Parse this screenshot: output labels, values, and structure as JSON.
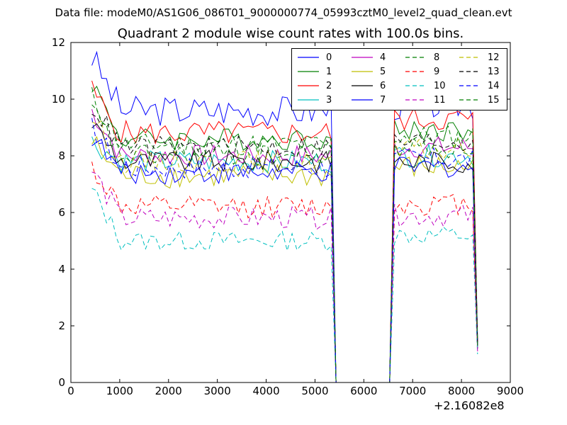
{
  "header": {
    "suptitle": "Data file: modeM0/AS1G06_086T01_9000000774_05993cztM0_level2_quad_clean.evt"
  },
  "chart_data": {
    "type": "line",
    "title": "Quadrant 2 module wise count rates with 100.0s bins.",
    "xlabel": "",
    "ylabel": "",
    "x_offset_label": "+2.16082e8",
    "xlim": [
      0,
      9000
    ],
    "ylim": [
      0,
      12
    ],
    "xticks": [
      "0",
      "1000",
      "2000",
      "3000",
      "4000",
      "5000",
      "6000",
      "7000",
      "8000",
      "9000"
    ],
    "yticks": [
      "0",
      "2",
      "4",
      "6",
      "8",
      "10",
      "12"
    ],
    "x": [
      430,
      530,
      630,
      730,
      830,
      930,
      1030,
      1130,
      1230,
      1330,
      1430,
      1530,
      1630,
      1730,
      1830,
      1930,
      2030,
      2130,
      2230,
      2330,
      2430,
      2530,
      2630,
      2730,
      2830,
      2930,
      3030,
      3130,
      3230,
      3330,
      3430,
      3530,
      3630,
      3730,
      3830,
      3930,
      4030,
      4130,
      4230,
      4330,
      4430,
      4530,
      4630,
      4730,
      4830,
      4930,
      5030,
      5130,
      5230,
      5330,
      5430,
      5530,
      5630,
      5730,
      5830,
      5930,
      6030,
      6130,
      6230,
      6330,
      6430,
      6530,
      6630,
      6730,
      6830,
      6930,
      7030,
      7130,
      7230,
      7330,
      7430,
      7530,
      7630,
      7730,
      7830,
      7930,
      8030,
      8130,
      8230,
      8330
    ],
    "gap_x_range": [
      5430,
      6530
    ],
    "legend_position": "upper right",
    "series": [
      {
        "name": "0",
        "color": "#0000ff",
        "style": "solid",
        "start": 11.5,
        "level": 9.6,
        "post": 9.8,
        "amp": 0.55,
        "end": 1.5
      },
      {
        "name": "1",
        "color": "#007f00",
        "style": "solid",
        "start": 10.6,
        "level": 8.6,
        "post": 8.9,
        "amp": 0.4,
        "end": 1.5
      },
      {
        "name": "2",
        "color": "#ff0000",
        "style": "solid",
        "start": 10.3,
        "level": 8.8,
        "post": 9.3,
        "amp": 0.45,
        "end": 1.4
      },
      {
        "name": "3",
        "color": "#00bfbf",
        "style": "solid",
        "start": 8.5,
        "level": 7.8,
        "post": 8.0,
        "amp": 0.4,
        "end": 1.3
      },
      {
        "name": "4",
        "color": "#bf00bf",
        "style": "solid",
        "start": 9.6,
        "level": 8.0,
        "post": 8.3,
        "amp": 0.4,
        "end": 1.4
      },
      {
        "name": "5",
        "color": "#bfbf00",
        "style": "solid",
        "start": 8.5,
        "level": 7.3,
        "post": 7.6,
        "amp": 0.45,
        "end": 1.2
      },
      {
        "name": "6",
        "color": "#000000",
        "style": "solid",
        "start": 9.2,
        "level": 7.8,
        "post": 7.8,
        "amp": 0.4,
        "end": 1.3
      },
      {
        "name": "7",
        "color": "#0000ff",
        "style": "solid",
        "start": 8.7,
        "level": 7.4,
        "post": 7.6,
        "amp": 0.4,
        "end": 1.2
      },
      {
        "name": "8",
        "color": "#007f00",
        "style": "dashed",
        "start": 10.1,
        "level": 8.4,
        "post": 8.7,
        "amp": 0.4,
        "end": 1.4
      },
      {
        "name": "9",
        "color": "#ff0000",
        "style": "dashed",
        "start": 7.6,
        "level": 6.2,
        "post": 6.3,
        "amp": 0.4,
        "end": 1.1
      },
      {
        "name": "10",
        "color": "#00bfbf",
        "style": "dashed",
        "start": 6.8,
        "level": 5.0,
        "post": 5.2,
        "amp": 0.35,
        "end": 1.0
      },
      {
        "name": "11",
        "color": "#bf00bf",
        "style": "dashed",
        "start": 7.5,
        "level": 5.8,
        "post": 5.9,
        "amp": 0.4,
        "end": 1.1
      },
      {
        "name": "12",
        "color": "#bfbf00",
        "style": "dashed",
        "start": 9.4,
        "level": 7.8,
        "post": 8.2,
        "amp": 0.4,
        "end": 1.3
      },
      {
        "name": "13",
        "color": "#000000",
        "style": "dashed",
        "start": 9.8,
        "level": 8.3,
        "post": 8.5,
        "amp": 0.4,
        "end": 1.4
      },
      {
        "name": "14",
        "color": "#0000ff",
        "style": "dashed",
        "start": 9.0,
        "level": 7.6,
        "post": 7.9,
        "amp": 0.4,
        "end": 1.3
      },
      {
        "name": "15",
        "color": "#007f00",
        "style": "dashed",
        "start": 9.6,
        "level": 8.0,
        "post": 8.3,
        "amp": 0.4,
        "end": 1.3
      }
    ]
  }
}
